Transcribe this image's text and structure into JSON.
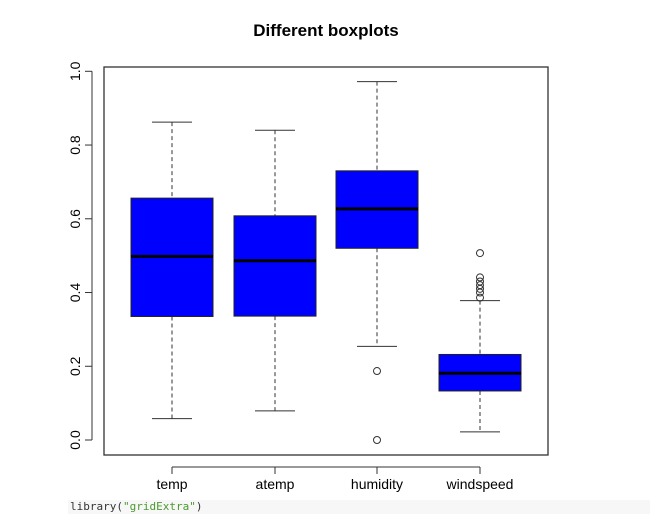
{
  "chart_data": {
    "type": "boxplot",
    "title": "Different boxplots",
    "xlabel": "",
    "ylabel": "",
    "ylim": [
      0,
      1
    ],
    "yticks": [
      "0.0",
      "0.2",
      "0.4",
      "0.6",
      "0.8",
      "1.0"
    ],
    "grid": false,
    "box_color": "#0000ff",
    "categories": [
      "temp",
      "atemp",
      "humidity",
      "windspeed"
    ],
    "boxes": [
      {
        "low": 0.058,
        "q1": 0.335,
        "median": 0.498,
        "q3": 0.656,
        "high": 0.862,
        "outliers": []
      },
      {
        "low": 0.079,
        "q1": 0.336,
        "median": 0.486,
        "q3": 0.608,
        "high": 0.84,
        "outliers": []
      },
      {
        "low": 0.254,
        "q1": 0.52,
        "median": 0.627,
        "q3": 0.73,
        "high": 0.972,
        "outliers": [
          0.187,
          0.0
        ]
      },
      {
        "low": 0.022,
        "q1": 0.133,
        "median": 0.181,
        "q3": 0.232,
        "high": 0.378,
        "outliers": [
          0.507,
          0.441,
          0.43,
          0.42,
          0.41,
          0.4,
          0.386
        ]
      }
    ]
  },
  "code": {
    "fn": "library(",
    "arg": "\"gridExtra\"",
    "close": ")"
  }
}
